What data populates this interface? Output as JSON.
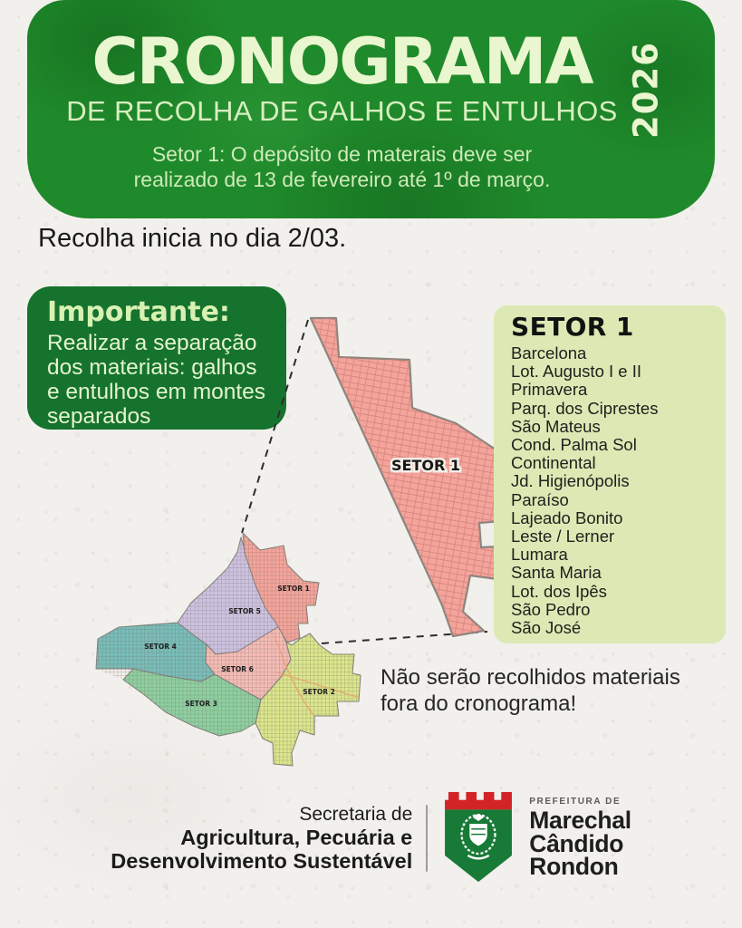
{
  "colors": {
    "page_bg": "#f2f0ec",
    "header_green": "#1f8a2b",
    "cream": "#eaf6cf",
    "subtitle_green": "#d9efc0",
    "note_green": "#cdeab8",
    "important_green": "#16732e",
    "list_bg": "#dce9b4",
    "map_stroke": "#8a857e",
    "shield_green": "#177a36",
    "shield_red": "#d32327"
  },
  "header": {
    "title": "CRONOGRAMA",
    "subtitle": "DE RECOLHA DE GALHOS E ENTULHOS",
    "year": "2026",
    "note_line1": "Setor 1: O depósito de materais deve ser",
    "note_line2": "realizado de 13 de fevereiro até 1º de março."
  },
  "intro": {
    "text": "Recolha inicia no dia 2/03."
  },
  "important": {
    "title": "Importante:",
    "body": "Realizar a separação dos materiais: galhos e entulhos em montes separados"
  },
  "sector_list": {
    "title": "SETOR 1",
    "items": [
      "Barcelona",
      "Lot. Augusto I e II",
      "Primavera",
      "Parq. dos Ciprestes",
      "São Mateus",
      "Cond. Palma Sol",
      "Continental",
      "Jd. Higienópolis",
      "Paraíso",
      "Lajeado Bonito",
      "Leste / Lerner",
      "Lumara",
      "Santa Maria",
      "Lot. dos Ipês",
      "São Pedro",
      "São José"
    ]
  },
  "map": {
    "zoom_label": "SETOR 1",
    "sectors": [
      {
        "label": "SETOR 1",
        "color": "#f5a49b"
      },
      {
        "label": "SETOR 5",
        "color": "#cec2e2"
      },
      {
        "label": "SETOR 4",
        "color": "#79bdb9"
      },
      {
        "label": "SETOR 6",
        "color": "#f6bcb6"
      },
      {
        "label": "SETOR 3",
        "color": "#8ed0a0"
      },
      {
        "label": "SETOR 2",
        "color": "#dce68c"
      }
    ]
  },
  "warning": {
    "line1": "Não serão recolhidos materiais",
    "line2": "fora do cronograma!"
  },
  "footer": {
    "dept_line1": "Secretaria de",
    "dept_line2": "Agricultura, Pecuária e",
    "dept_line3": "Desenvolvimento Sustentável",
    "authority_label": "PREFEITURA DE",
    "city_line1": "Marechal",
    "city_line2": "Cândido",
    "city_line3": "Rondon"
  }
}
